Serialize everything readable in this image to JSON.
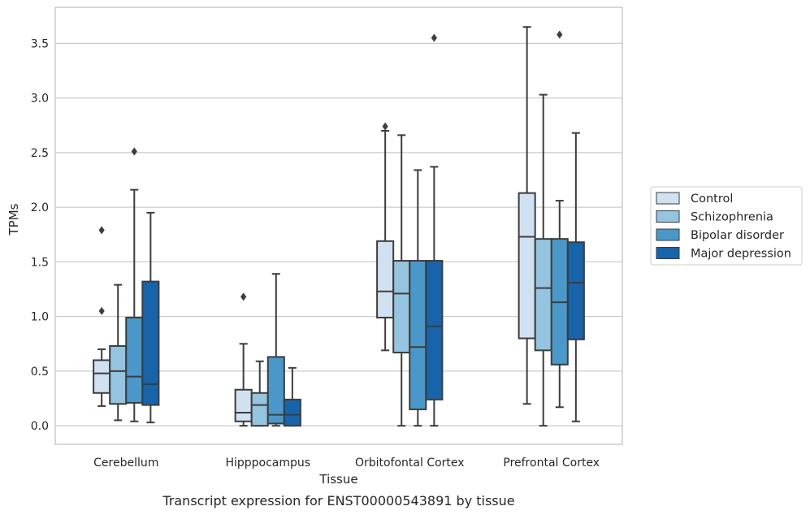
{
  "caption": "Transcript expression for ENST00000543891 by tissue",
  "colors": {
    "Control": "#d0e1f2",
    "Schizophrenia": "#94c4df",
    "Bipolar disorder": "#4a98c9",
    "Major depression": "#1764ab",
    "line": "#3d3d3d",
    "grid": "#cccccc",
    "frame": "#cccccc"
  },
  "chart_data": {
    "type": "box",
    "title": "",
    "xlabel": "Tissue",
    "ylabel": "TPMs",
    "ylim": [
      -0.17,
      3.83
    ],
    "yticks": [
      0.0,
      0.5,
      1.0,
      1.5,
      2.0,
      2.5,
      3.0,
      3.5
    ],
    "ytick_labels": [
      "0.0",
      "0.5",
      "1.0",
      "1.5",
      "2.0",
      "2.5",
      "3.0",
      "3.5"
    ],
    "grid": "horizontal",
    "legend_position": "right",
    "categories": [
      "Cerebellum",
      "Hipppocampus",
      "Orbitofontal Cortex",
      "Prefrontal Cortex"
    ],
    "series": [
      {
        "name": "Control",
        "boxes": [
          {
            "whislo": 0.18,
            "q1": 0.3,
            "med": 0.48,
            "q3": 0.6,
            "whishi": 0.7,
            "fliers": [
              1.05,
              1.79
            ]
          },
          {
            "whislo": 0.0,
            "q1": 0.04,
            "med": 0.12,
            "q3": 0.33,
            "whishi": 0.75,
            "fliers": [
              1.18
            ]
          },
          {
            "whislo": 0.69,
            "q1": 0.99,
            "med": 1.23,
            "q3": 1.69,
            "whishi": 2.7,
            "fliers": [
              2.74
            ]
          },
          {
            "whislo": 0.2,
            "q1": 0.8,
            "med": 1.73,
            "q3": 2.13,
            "whishi": 3.65,
            "fliers": []
          }
        ]
      },
      {
        "name": "Schizophrenia",
        "boxes": [
          {
            "whislo": 0.05,
            "q1": 0.2,
            "med": 0.5,
            "q3": 0.73,
            "whishi": 1.29,
            "fliers": []
          },
          {
            "whislo": 0.0,
            "q1": 0.0,
            "med": 0.19,
            "q3": 0.3,
            "whishi": 0.59,
            "fliers": []
          },
          {
            "whislo": 0.0,
            "q1": 0.67,
            "med": 1.21,
            "q3": 1.51,
            "whishi": 2.66,
            "fliers": []
          },
          {
            "whislo": 0.0,
            "q1": 0.69,
            "med": 1.26,
            "q3": 1.71,
            "whishi": 3.03,
            "fliers": []
          }
        ]
      },
      {
        "name": "Bipolar disorder",
        "boxes": [
          {
            "whislo": 0.04,
            "q1": 0.21,
            "med": 0.45,
            "q3": 0.99,
            "whishi": 2.16,
            "fliers": [
              2.51
            ]
          },
          {
            "whislo": 0.0,
            "q1": 0.02,
            "med": 0.1,
            "q3": 0.63,
            "whishi": 1.39,
            "fliers": []
          },
          {
            "whislo": 0.0,
            "q1": 0.15,
            "med": 0.72,
            "q3": 1.51,
            "whishi": 2.34,
            "fliers": []
          },
          {
            "whislo": 0.17,
            "q1": 0.56,
            "med": 1.13,
            "q3": 1.71,
            "whishi": 2.06,
            "fliers": [
              3.58
            ]
          }
        ]
      },
      {
        "name": "Major depression",
        "boxes": [
          {
            "whislo": 0.03,
            "q1": 0.19,
            "med": 0.38,
            "q3": 1.32,
            "whishi": 1.95,
            "fliers": []
          },
          {
            "whislo": 0.0,
            "q1": 0.0,
            "med": 0.1,
            "q3": 0.24,
            "whishi": 0.53,
            "fliers": []
          },
          {
            "whislo": 0.0,
            "q1": 0.24,
            "med": 0.91,
            "q3": 1.51,
            "whishi": 2.37,
            "fliers": [
              3.55
            ]
          },
          {
            "whislo": 0.04,
            "q1": 0.79,
            "med": 1.31,
            "q3": 1.68,
            "whishi": 2.68,
            "fliers": []
          }
        ]
      }
    ]
  }
}
